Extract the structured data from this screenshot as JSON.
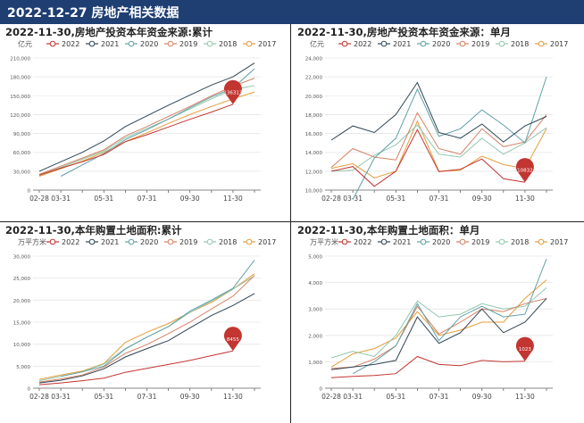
{
  "header": {
    "title": "2022-12-27 房地产相关数据"
  },
  "charts": [
    {
      "title": "2022-11-30,房地产投资本年资金来源:累计",
      "unit": "亿元",
      "legend": [
        "2022",
        "2021",
        "2020",
        "2019",
        "2018",
        "2017"
      ],
      "x_ticks": [
        "02-28",
        "03-31",
        "05-31",
        "07-31",
        "09-30",
        "11-30"
      ],
      "y_ticks": [
        "0",
        "30,000",
        "60,000",
        "90,000",
        "120,000",
        "150,000",
        "180,000",
        "210,000"
      ],
      "marker": "136313"
    },
    {
      "title": "2022-11-30,房地产投资本年资金来源：单月",
      "unit": "亿元",
      "legend": [
        "2022",
        "2021",
        "2020",
        "2019",
        "2018",
        "2017"
      ],
      "x_ticks": [
        "02-28",
        "03-31",
        "05-31",
        "07-31",
        "09-30",
        "11-30"
      ],
      "y_ticks": [
        "10,000",
        "12,000",
        "14,000",
        "16,000",
        "18,000",
        "20,000",
        "22,000",
        "24,000"
      ],
      "marker": "10832"
    },
    {
      "title": "2022-11-30,本年购置土地面积:累计",
      "unit": "万平方米",
      "legend": [
        "2022",
        "2021",
        "2020",
        "2019",
        "2018",
        "2017"
      ],
      "x_ticks": [
        "02-28",
        "03-31",
        "05-31",
        "07-31",
        "09-30",
        "11-30"
      ],
      "y_ticks": [
        "0",
        "5,000",
        "10,000",
        "15,000",
        "20,000",
        "25,000",
        "30,000"
      ],
      "marker": "8455"
    },
    {
      "title": "2022-11-30,本年购置土地面积：单月",
      "unit": "万平方米",
      "legend": [
        "2022",
        "2021",
        "2020",
        "2019",
        "2018",
        "2017"
      ],
      "x_ticks": [
        "02-28",
        "03-31",
        "05-31",
        "07-31",
        "09-30",
        "11-30"
      ],
      "y_ticks": [
        "0",
        "1,000",
        "2,000",
        "3,000",
        "4,000",
        "5,000"
      ],
      "marker": "1023"
    }
  ],
  "chart_data": [
    {
      "type": "line",
      "title": "2022-11-30,房地产投资本年资金来源:累计",
      "ylabel": "亿元",
      "ylim": [
        0,
        210000
      ],
      "x": [
        "02-28",
        "03-31",
        "04-30",
        "05-31",
        "06-30",
        "07-31",
        "08-31",
        "09-30",
        "10-31",
        "11-30",
        "12-31"
      ],
      "series": [
        {
          "name": "2022",
          "color": "#c23531",
          "values": [
            23761,
            34904,
            44931,
            56496,
            76847,
            87925,
            100362,
            112500,
            124000,
            136313,
            null
          ]
        },
        {
          "name": "2021",
          "color": "#2f4554",
          "values": [
            30000,
            45000,
            60000,
            78000,
            101000,
            118000,
            135000,
            151000,
            167000,
            180000,
            202000
          ]
        },
        {
          "name": "2020",
          "color": "#61a0a8",
          "values": [
            null,
            22000,
            40000,
            58000,
            80000,
            96000,
            113000,
            131000,
            148000,
            162000,
            193000
          ]
        },
        {
          "name": "2019",
          "color": "#d48265",
          "values": [
            25000,
            38000,
            51000,
            64000,
            86000,
            101000,
            117000,
            133000,
            150000,
            165000,
            178000
          ]
        },
        {
          "name": "2018",
          "color": "#91c7ae",
          "values": [
            24000,
            36000,
            49000,
            62000,
            83000,
            98000,
            113000,
            129000,
            145000,
            160000,
            166000
          ]
        },
        {
          "name": "2017",
          "color": "#e69d3a",
          "values": [
            22000,
            34000,
            46000,
            60000,
            77000,
            91000,
            106000,
            120000,
            133000,
            145000,
            156000
          ]
        }
      ]
    },
    {
      "type": "line",
      "title": "2022-11-30,房地产投资本年资金来源：单月",
      "ylabel": "亿元",
      "ylim": [
        10000,
        24000
      ],
      "x": [
        "02-28",
        "03-31",
        "04-30",
        "05-31",
        "06-30",
        "07-31",
        "08-31",
        "09-30",
        "10-31",
        "11-30",
        "12-31"
      ],
      "series": [
        {
          "name": "2022",
          "color": "#c23531",
          "values": [
            12000,
            12500,
            10400,
            12000,
            16400,
            11950,
            12200,
            13300,
            11200,
            10832,
            null
          ]
        },
        {
          "name": "2021",
          "color": "#2f4554",
          "values": [
            15300,
            16800,
            16100,
            18000,
            21400,
            16100,
            15500,
            17000,
            15100,
            16800,
            17800
          ]
        },
        {
          "name": "2020",
          "color": "#61a0a8",
          "values": [
            null,
            9000,
            13400,
            15500,
            20700,
            15700,
            16500,
            18500,
            16900,
            15000,
            22000
          ]
        },
        {
          "name": "2019",
          "color": "#d48265",
          "values": [
            12400,
            14400,
            13500,
            13200,
            18200,
            14400,
            13800,
            16500,
            14600,
            15100,
            18000
          ]
        },
        {
          "name": "2018",
          "color": "#91c7ae",
          "values": [
            12000,
            12100,
            13700,
            14800,
            16900,
            13800,
            13500,
            15500,
            13800,
            15000,
            16600
          ]
        },
        {
          "name": "2017",
          "color": "#e69d3a",
          "values": [
            12300,
            12800,
            11300,
            12000,
            17300,
            12000,
            12100,
            13600,
            12700,
            12300,
            16500
          ]
        }
      ]
    },
    {
      "type": "line",
      "title": "2022-11-30,本年购置土地面积:累计",
      "ylabel": "万平方米",
      "ylim": [
        0,
        30000
      ],
      "x": [
        "02-28",
        "03-31",
        "04-30",
        "05-31",
        "06-30",
        "07-31",
        "08-31",
        "09-30",
        "10-31",
        "11-30",
        "12-31"
      ],
      "series": [
        {
          "name": "2022",
          "color": "#c23531",
          "values": [
            800,
            1200,
            1700,
            2300,
            3600,
            4500,
            5400,
            6300,
            7400,
            8455,
            null
          ]
        },
        {
          "name": "2021",
          "color": "#2f4554",
          "values": [
            1200,
            1800,
            2800,
            4400,
            7100,
            9000,
            10800,
            13700,
            16500,
            18800,
            21500
          ]
        },
        {
          "name": "2020",
          "color": "#61a0a8",
          "values": [
            null,
            2700,
            3700,
            5000,
            8900,
            11600,
            14000,
            17500,
            20000,
            22700,
            29100
          ]
        },
        {
          "name": "2019",
          "color": "#d48265",
          "values": [
            1400,
            2100,
            3000,
            4800,
            7900,
            9900,
            12400,
            15000,
            18000,
            20900,
            25600
          ]
        },
        {
          "name": "2018",
          "color": "#91c7ae",
          "values": [
            1700,
            2700,
            3700,
            5500,
            9000,
            11600,
            14000,
            17200,
            19800,
            22500,
            25500
          ]
        },
        {
          "name": "2017",
          "color": "#e69d3a",
          "values": [
            2000,
            3000,
            3900,
            5600,
            10400,
            12700,
            14700,
            17200,
            19500,
            22500,
            26000
          ]
        }
      ]
    },
    {
      "type": "line",
      "title": "2022-11-30,本年购置土地面积：单月",
      "ylabel": "万平方米",
      "ylim": [
        0,
        5000
      ],
      "x": [
        "02-28",
        "03-31",
        "04-30",
        "05-31",
        "06-30",
        "07-31",
        "08-31",
        "09-30",
        "10-31",
        "11-30",
        "12-31"
      ],
      "series": [
        {
          "name": "2022",
          "color": "#c23531",
          "values": [
            400,
            450,
            480,
            550,
            1200,
            900,
            850,
            1050,
            1000,
            1023,
            null
          ]
        },
        {
          "name": "2021",
          "color": "#2f4554",
          "values": [
            700,
            800,
            900,
            1050,
            2700,
            1700,
            2100,
            3000,
            2100,
            2500,
            3400
          ]
        },
        {
          "name": "2020",
          "color": "#61a0a8",
          "values": [
            null,
            550,
            1000,
            1600,
            3200,
            1800,
            2700,
            3100,
            2700,
            2800,
            4900
          ]
        },
        {
          "name": "2019",
          "color": "#d48265",
          "values": [
            750,
            800,
            1100,
            1600,
            3100,
            2050,
            2500,
            3000,
            2900,
            3200,
            3400
          ]
        },
        {
          "name": "2018",
          "color": "#91c7ae",
          "values": [
            1150,
            1400,
            1200,
            2000,
            3300,
            2700,
            2800,
            3200,
            3000,
            3100,
            3800
          ]
        },
        {
          "name": "2017",
          "color": "#e69d3a",
          "values": [
            800,
            1300,
            1500,
            1900,
            2900,
            2000,
            2200,
            2500,
            2500,
            3400,
            4100
          ]
        }
      ]
    }
  ]
}
